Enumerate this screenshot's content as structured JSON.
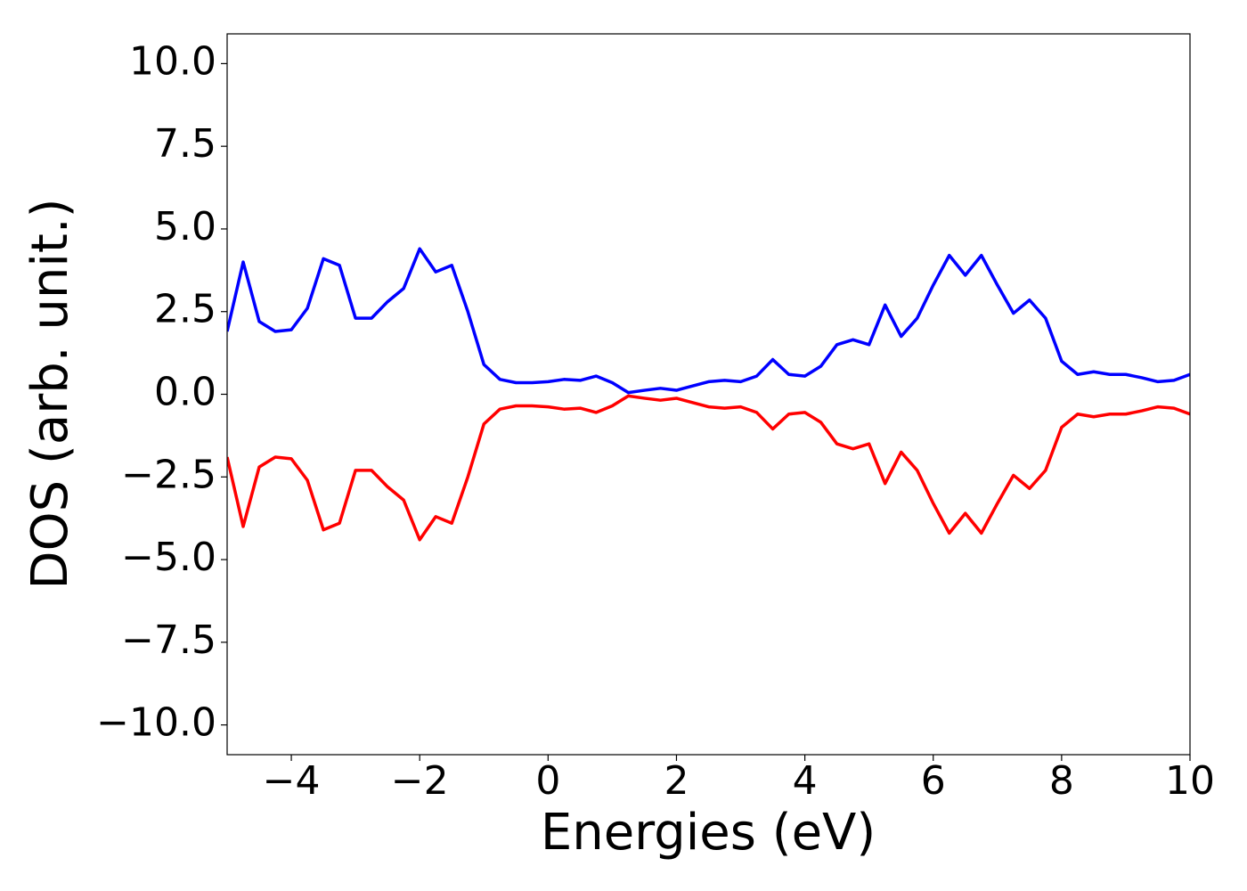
{
  "chart_data": {
    "type": "line",
    "xlabel": "Energies (eV)",
    "ylabel": "DOS (arb. unit.)",
    "x": [
      -5,
      -4.75,
      -4.5,
      -4.25,
      -4,
      -3.75,
      -3.5,
      -3.25,
      -3,
      -2.75,
      -2.5,
      -2.25,
      -2,
      -1.75,
      -1.5,
      -1.25,
      -1,
      -0.75,
      -0.5,
      -0.25,
      0,
      0.25,
      0.5,
      0.75,
      1,
      1.25,
      1.5,
      1.75,
      2,
      2.25,
      2.5,
      2.75,
      3,
      3.25,
      3.5,
      3.75,
      4,
      4.25,
      4.5,
      4.75,
      5,
      5.25,
      5.5,
      5.75,
      6,
      6.25,
      6.5,
      6.75,
      7,
      7.25,
      7.5,
      7.75,
      8,
      8.25,
      8.5,
      8.75,
      9,
      9.25,
      9.5,
      9.75,
      10
    ],
    "series": [
      {
        "color": "#0000ff",
        "values": [
          1.9,
          4.0,
          2.2,
          1.9,
          1.95,
          2.6,
          4.1,
          3.9,
          2.3,
          2.3,
          2.8,
          3.2,
          4.4,
          3.7,
          3.9,
          2.5,
          0.9,
          0.45,
          0.35,
          0.35,
          0.38,
          0.45,
          0.42,
          0.55,
          0.35,
          0.05,
          0.12,
          0.18,
          0.12,
          0.25,
          0.38,
          0.42,
          0.38,
          0.55,
          1.05,
          0.6,
          0.55,
          0.85,
          1.5,
          1.65,
          1.5,
          2.7,
          1.75,
          2.3,
          3.3,
          4.2,
          3.6,
          4.2,
          3.3,
          2.45,
          2.85,
          2.3,
          1.0,
          0.6,
          0.68,
          0.6,
          0.6,
          0.5,
          0.38,
          0.42,
          0.6
        ]
      },
      {
        "color": "#ff0000",
        "values": [
          -1.9,
          -4.0,
          -2.2,
          -1.9,
          -1.95,
          -2.6,
          -4.1,
          -3.9,
          -2.3,
          -2.3,
          -2.8,
          -3.2,
          -4.4,
          -3.7,
          -3.9,
          -2.5,
          -0.9,
          -0.45,
          -0.35,
          -0.35,
          -0.38,
          -0.45,
          -0.42,
          -0.55,
          -0.35,
          -0.05,
          -0.12,
          -0.18,
          -0.12,
          -0.25,
          -0.38,
          -0.42,
          -0.38,
          -0.55,
          -1.05,
          -0.6,
          -0.55,
          -0.85,
          -1.5,
          -1.65,
          -1.5,
          -2.7,
          -1.75,
          -2.3,
          -3.3,
          -4.2,
          -3.6,
          -4.2,
          -3.3,
          -2.45,
          -2.85,
          -2.3,
          -1.0,
          -0.6,
          -0.68,
          -0.6,
          -0.6,
          -0.5,
          -0.38,
          -0.42,
          -0.6
        ]
      }
    ],
    "xlim": [
      -5,
      10
    ],
    "ylim": [
      -10.9,
      10.9
    ],
    "xticks": [
      {
        "value": -4,
        "label": "−4"
      },
      {
        "value": -2,
        "label": "−2"
      },
      0,
      2,
      4,
      6,
      8,
      10
    ],
    "yticks": [
      {
        "value": -10,
        "label": "−10.0"
      },
      {
        "value": -7.5,
        "label": "−7.5"
      },
      {
        "value": -5,
        "label": "−5.0"
      },
      {
        "value": -2.5,
        "label": "−2.5"
      },
      {
        "value": 0,
        "label": "0.0"
      },
      {
        "value": 2.5,
        "label": "2.5"
      },
      {
        "value": 5,
        "label": "5.0"
      },
      {
        "value": 7.5,
        "label": "7.5"
      },
      {
        "value": 10,
        "label": "10.0"
      }
    ],
    "grid": false
  }
}
